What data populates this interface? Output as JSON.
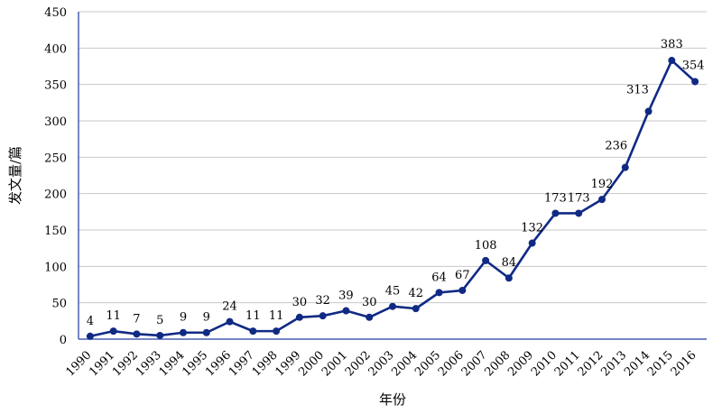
{
  "chart_data": {
    "type": "line",
    "xlabel": "年份",
    "ylabel": "发文量/篇",
    "x": [
      "1990",
      "1991",
      "1992",
      "1993",
      "1994",
      "1995",
      "1996",
      "1997",
      "1998",
      "1999",
      "2000",
      "2001",
      "2002",
      "2003",
      "2004",
      "2005",
      "2006",
      "2007",
      "2008",
      "2009",
      "2010",
      "2011",
      "2012",
      "2013",
      "2014",
      "2015",
      "2016"
    ],
    "values": [
      4,
      11,
      7,
      5,
      9,
      9,
      24,
      11,
      11,
      30,
      32,
      39,
      30,
      45,
      42,
      64,
      67,
      108,
      84,
      132,
      173,
      173,
      192,
      236,
      313,
      383,
      354
    ],
    "ylim": [
      0,
      450
    ],
    "yticks": [
      0,
      50,
      100,
      150,
      200,
      250,
      300,
      350,
      400,
      450
    ],
    "grid": "horizontal",
    "line_color": "#102a84",
    "grid_color": "#c8c8c8"
  }
}
